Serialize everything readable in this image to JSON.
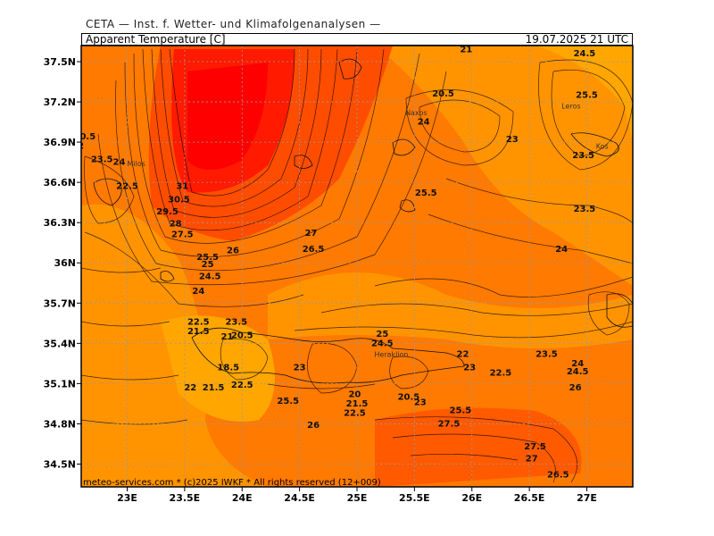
{
  "header": {
    "source": "CETA — Inst. f. Wetter- und Klimafolgenanalysen —",
    "title": "Apparent Temperature [C]",
    "valid": "19.07.2025 21 UTC"
  },
  "footer": "meteo-services.com * (c)2025 IWKF * All rights reserved (12+009)",
  "axes": {
    "lat_labels": [
      "37.5N",
      "37.2N",
      "36.9N",
      "36.6N",
      "36.3N",
      "36N",
      "35.7N",
      "35.4N",
      "35.1N",
      "34.8N",
      "34.5N"
    ],
    "lat_values": [
      37.5,
      37.2,
      36.9,
      36.6,
      36.3,
      36.0,
      35.7,
      35.4,
      35.1,
      34.8,
      34.5
    ],
    "lon_labels": [
      "23E",
      "23.5E",
      "24E",
      "24.5E",
      "25E",
      "25.5E",
      "26E",
      "26.5E",
      "27E"
    ],
    "lon_values": [
      23.0,
      23.5,
      24.0,
      24.5,
      25.0,
      25.5,
      26.0,
      26.5,
      27.0
    ]
  },
  "cities": [
    {
      "name": "Milos",
      "lon": 23.0,
      "lat": 36.72
    },
    {
      "name": "Heraklion",
      "lon": 25.15,
      "lat": 35.3
    },
    {
      "name": "Kos",
      "lon": 27.08,
      "lat": 36.85
    },
    {
      "name": "Leros",
      "lon": 26.78,
      "lat": 37.15
    },
    {
      "name": "Naxos",
      "lon": 25.42,
      "lat": 37.1
    }
  ],
  "contour_labels": [
    {
      "t": "21",
      "lon": 25.95,
      "lat": 37.57
    },
    {
      "t": "24.5",
      "lon": 26.98,
      "lat": 37.54
    },
    {
      "t": "20.5",
      "lon": 25.75,
      "lat": 37.24
    },
    {
      "t": "25.5",
      "lon": 27.0,
      "lat": 37.23
    },
    {
      "t": "24",
      "lon": 25.58,
      "lat": 37.03
    },
    {
      "t": "23",
      "lon": 26.35,
      "lat": 36.9
    },
    {
      "t": "23.5",
      "lon": 26.97,
      "lat": 36.78
    },
    {
      "t": "20.5",
      "lon": 22.63,
      "lat": 36.92
    },
    {
      "t": "22",
      "lon": 22.57,
      "lat": 36.85
    },
    {
      "t": "23.5",
      "lon": 22.78,
      "lat": 36.75
    },
    {
      "t": "24",
      "lon": 22.93,
      "lat": 36.73
    },
    {
      "t": "22.5",
      "lon": 23.0,
      "lat": 36.55
    },
    {
      "t": "31",
      "lon": 23.48,
      "lat": 36.55
    },
    {
      "t": "30.5",
      "lon": 23.45,
      "lat": 36.45
    },
    {
      "t": "29.5",
      "lon": 23.35,
      "lat": 36.36
    },
    {
      "t": "28",
      "lon": 23.42,
      "lat": 36.27
    },
    {
      "t": "27.5",
      "lon": 23.48,
      "lat": 36.19
    },
    {
      "t": "25.5",
      "lon": 25.6,
      "lat": 36.5
    },
    {
      "t": "23.5",
      "lon": 26.98,
      "lat": 36.38
    },
    {
      "t": "27",
      "lon": 24.6,
      "lat": 36.2
    },
    {
      "t": "26.5",
      "lon": 24.62,
      "lat": 36.08
    },
    {
      "t": "26",
      "lon": 23.92,
      "lat": 36.07
    },
    {
      "t": "25.5",
      "lon": 23.7,
      "lat": 36.02
    },
    {
      "t": "25",
      "lon": 23.7,
      "lat": 35.97
    },
    {
      "t": "24",
      "lon": 26.78,
      "lat": 36.08
    },
    {
      "t": "24.5",
      "lon": 23.72,
      "lat": 35.88
    },
    {
      "t": "24",
      "lon": 23.62,
      "lat": 35.77
    },
    {
      "t": "22.5",
      "lon": 23.62,
      "lat": 35.54
    },
    {
      "t": "21.5",
      "lon": 23.62,
      "lat": 35.47
    },
    {
      "t": "23.5",
      "lon": 23.95,
      "lat": 35.54
    },
    {
      "t": "21",
      "lon": 23.87,
      "lat": 35.43
    },
    {
      "t": "20.5",
      "lon": 24.0,
      "lat": 35.44
    },
    {
      "t": "25",
      "lon": 25.22,
      "lat": 35.45
    },
    {
      "t": "24.5",
      "lon": 25.22,
      "lat": 35.38
    },
    {
      "t": "22",
      "lon": 25.92,
      "lat": 35.3
    },
    {
      "t": "23.5",
      "lon": 26.65,
      "lat": 35.3
    },
    {
      "t": "24",
      "lon": 26.92,
      "lat": 35.23
    },
    {
      "t": "24.5",
      "lon": 26.92,
      "lat": 35.17
    },
    {
      "t": "23",
      "lon": 25.98,
      "lat": 35.2
    },
    {
      "t": "22.5",
      "lon": 26.25,
      "lat": 35.16
    },
    {
      "t": "18.5",
      "lon": 23.88,
      "lat": 35.2
    },
    {
      "t": "22",
      "lon": 23.55,
      "lat": 35.05
    },
    {
      "t": "21.5",
      "lon": 23.75,
      "lat": 35.05
    },
    {
      "t": "22.5",
      "lon": 24.0,
      "lat": 35.07
    },
    {
      "t": "25.5",
      "lon": 24.4,
      "lat": 34.95
    },
    {
      "t": "23",
      "lon": 24.5,
      "lat": 35.2
    },
    {
      "t": "20",
      "lon": 24.98,
      "lat": 35.0
    },
    {
      "t": "21.5",
      "lon": 25.0,
      "lat": 34.93
    },
    {
      "t": "22.5",
      "lon": 24.98,
      "lat": 34.86
    },
    {
      "t": "20.5",
      "lon": 25.45,
      "lat": 34.98
    },
    {
      "t": "23",
      "lon": 25.55,
      "lat": 34.94
    },
    {
      "t": "25.5",
      "lon": 25.9,
      "lat": 34.88
    },
    {
      "t": "26",
      "lon": 26.9,
      "lat": 35.05
    },
    {
      "t": "27.5",
      "lon": 25.8,
      "lat": 34.78
    },
    {
      "t": "26",
      "lon": 24.62,
      "lat": 34.77
    },
    {
      "t": "27.5",
      "lon": 26.55,
      "lat": 34.61
    },
    {
      "t": "27",
      "lon": 26.52,
      "lat": 34.52
    },
    {
      "t": "26.5",
      "lon": 26.75,
      "lat": 34.4
    }
  ],
  "colors": {
    "hot": "#ff0000",
    "warm": "#ff4400",
    "mid": "#ff6a00",
    "mild": "#ff9900",
    "cool": "#ffb000"
  }
}
